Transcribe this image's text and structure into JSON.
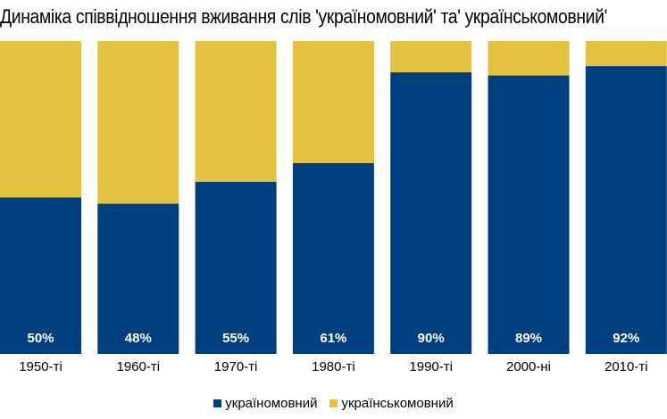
{
  "chart_data": {
    "type": "bar",
    "stacked": true,
    "title": "Динаміка співвідношення вживання слів 'україномовний' та' українськомовний'",
    "categories": [
      "1950-ті",
      "1960-ті",
      "1970-ті",
      "1980-ті",
      "1990-ті",
      "2000-ні",
      "2010-ті"
    ],
    "series": [
      {
        "name": "україномовний",
        "values": [
          50,
          48,
          55,
          61,
          90,
          89,
          92
        ],
        "color": "#003f7d"
      },
      {
        "name": "українськомовний",
        "values": [
          50,
          52,
          45,
          39,
          10,
          11,
          8
        ],
        "color": "#e2c23e"
      }
    ],
    "data_labels": [
      "50%",
      "48%",
      "55%",
      "61%",
      "90%",
      "89%",
      "92%"
    ],
    "ylim": [
      0,
      100
    ],
    "grid": false,
    "legend_position": "bottom"
  }
}
